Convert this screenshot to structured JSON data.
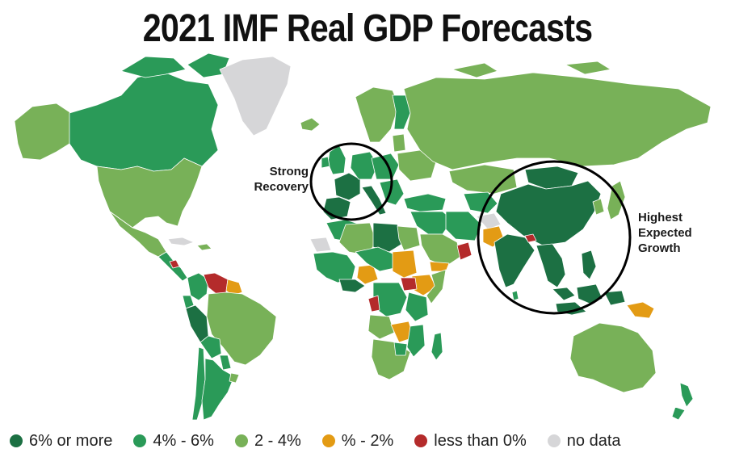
{
  "title": "2021 IMF Real GDP Forecasts",
  "annotations": {
    "left": {
      "line1": "Strong",
      "line2": "Recovery"
    },
    "right": {
      "line1": "Highest",
      "line2": "Expected",
      "line3": "Growth"
    }
  },
  "colors": {
    "dark_green": "#1c7043",
    "mid_green": "#2a9a58",
    "light_green": "#78b158",
    "orange": "#e39b14",
    "red": "#b42b2b",
    "no_data": "#d6d6d8",
    "border": "#ffffff"
  },
  "legend": [
    {
      "label": "6% or more",
      "color": "#1c7043"
    },
    {
      "label": "4% - 6%",
      "color": "#2a9a58"
    },
    {
      "label": "2 - 4%",
      "color": "#78b158"
    },
    {
      "label": "% - 2%",
      "color": "#e39b14"
    },
    {
      "label": "less than 0%",
      "color": "#b42b2b"
    },
    {
      "label": "no data",
      "color": "#d6d6d8"
    }
  ]
}
